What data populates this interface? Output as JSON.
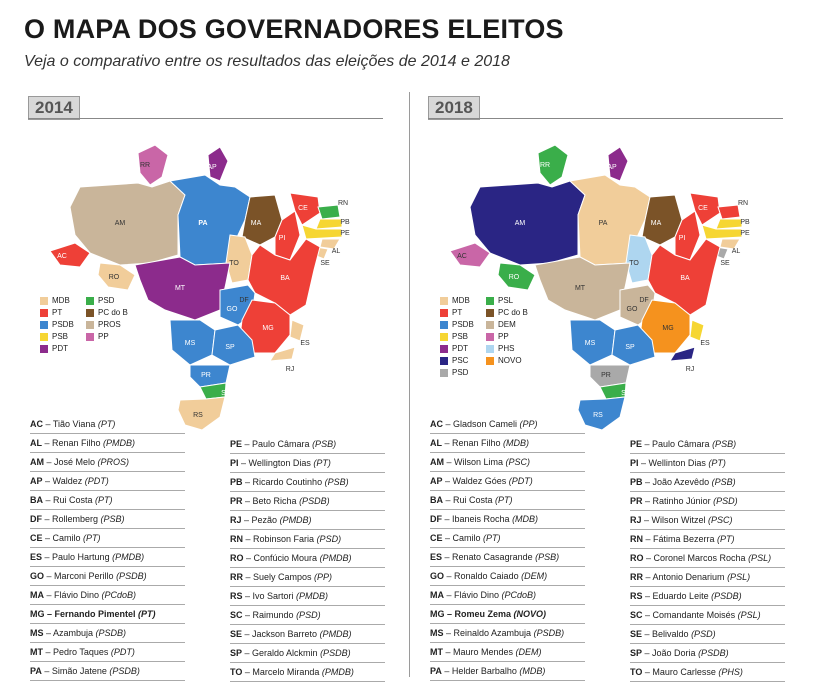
{
  "header": {
    "title": "O MAPA DOS GOVERNADORES ELEITOS",
    "subtitle": "Veja o comparativo entre os resultados das eleições de 2014 e 2018"
  },
  "colors": {
    "MDB": "#f1cd9a",
    "PT": "#ee4037",
    "PSDB": "#3d86cf",
    "PSB": "#f6d632",
    "PDT": "#8c2b8c",
    "PSD": "#3aae4a",
    "PCdoB": "#7b5328",
    "PROS": "#c9b59a",
    "PP": "#c966a7",
    "PSL": "#3aae4a",
    "DEM": "#c9b59a",
    "PHS": "#aed6f0",
    "PSC": "#2a2584",
    "NOVO": "#f5921e",
    "PSDgray": "#a9a9a9"
  },
  "panels": [
    {
      "year": "2014",
      "state_labels": [
        "RR",
        "AP",
        "AM",
        "PA",
        "MA",
        "CE",
        "RN",
        "PB",
        "PE",
        "AL",
        "SE",
        "PI",
        "AC",
        "RO",
        "TO",
        "BA",
        "MT",
        "DF",
        "GO",
        "MG",
        "ES",
        "RJ",
        "MS",
        "SP",
        "PR",
        "SC",
        "RS"
      ],
      "legend": [
        {
          "party": "MDB",
          "color": "#f1cd9a"
        },
        {
          "party": "PT",
          "color": "#ee4037"
        },
        {
          "party": "PSDB",
          "color": "#3d86cf"
        },
        {
          "party": "PSB",
          "color": "#f6d632"
        },
        {
          "party": "PDT",
          "color": "#8c2b8c"
        },
        {
          "party": "PSD",
          "color": "#3aae4a"
        },
        {
          "party": "PC do B",
          "color": "#7b5328"
        },
        {
          "party": "PROS",
          "color": "#c9b59a"
        },
        {
          "party": "PP",
          "color": "#c966a7"
        }
      ],
      "governors_left": [
        {
          "uf": "AC",
          "name": "Tião Viana",
          "party": "PT"
        },
        {
          "uf": "AL",
          "name": "Renan Filho",
          "party": "PMDB"
        },
        {
          "uf": "AM",
          "name": "José Melo",
          "party": "PROS"
        },
        {
          "uf": "AP",
          "name": "Waldez",
          "party": "PDT"
        },
        {
          "uf": "BA",
          "name": "Rui Costa",
          "party": "PT"
        },
        {
          "uf": "DF",
          "name": "Rollemberg",
          "party": "PSB"
        },
        {
          "uf": "CE",
          "name": "Camilo",
          "party": "PT"
        },
        {
          "uf": "ES",
          "name": "Paulo Hartung",
          "party": "PMDB"
        },
        {
          "uf": "GO",
          "name": "Marconi Perillo",
          "party": "PSDB"
        },
        {
          "uf": "MA",
          "name": "Flávio Dino",
          "party": "PCdoB"
        },
        {
          "uf": "MG",
          "name": "Fernando Pimentel",
          "party": "PT",
          "bold": true
        },
        {
          "uf": "MS",
          "name": "Azambuja",
          "party": "PSDB"
        },
        {
          "uf": "MT",
          "name": "Pedro Taques",
          "party": "PDT"
        },
        {
          "uf": "PA",
          "name": "Simão Jatene",
          "party": "PSDB"
        }
      ],
      "governors_right": [
        {
          "uf": "PE",
          "name": "Paulo Câmara",
          "party": "PSB"
        },
        {
          "uf": "PI",
          "name": "Wellington Dias",
          "party": "PT"
        },
        {
          "uf": "PB",
          "name": "Ricardo Coutinho",
          "party": "PSB"
        },
        {
          "uf": "PR",
          "name": "Beto Richa",
          "party": "PSDB"
        },
        {
          "uf": "RJ",
          "name": "Pezão",
          "party": "PMDB"
        },
        {
          "uf": "RN",
          "name": "Robinson Faria",
          "party": "PSD"
        },
        {
          "uf": "RO",
          "name": "Confúcio Moura",
          "party": "PMDB"
        },
        {
          "uf": "RR",
          "name": "Suely Campos",
          "party": "PP"
        },
        {
          "uf": "RS",
          "name": "Ivo Sartori",
          "party": "PMDB"
        },
        {
          "uf": "SC",
          "name": "Raimundo",
          "party": "PSD"
        },
        {
          "uf": "SE",
          "name": "Jackson Barreto",
          "party": "PMDB"
        },
        {
          "uf": "SP",
          "name": "Geraldo Alckmin",
          "party": "PSDB"
        },
        {
          "uf": "TO",
          "name": "Marcelo Miranda",
          "party": "PMDB"
        }
      ]
    },
    {
      "year": "2018",
      "state_labels": [
        "RR",
        "AP",
        "AM",
        "PA",
        "MA",
        "CE",
        "RN",
        "PB",
        "PE",
        "AL",
        "SE",
        "PI",
        "AC",
        "RO",
        "TO",
        "BA",
        "MT",
        "DF",
        "GO",
        "MG",
        "ES",
        "RJ",
        "MS",
        "SP",
        "PR",
        "SC",
        "RS"
      ],
      "legend": [
        {
          "party": "MDB",
          "color": "#f1cd9a"
        },
        {
          "party": "PT",
          "color": "#ee4037"
        },
        {
          "party": "PSDB",
          "color": "#3d86cf"
        },
        {
          "party": "PSB",
          "color": "#f6d632"
        },
        {
          "party": "PDT",
          "color": "#8c2b8c"
        },
        {
          "party": "PSC",
          "color": "#2a2584"
        },
        {
          "party": "PSD",
          "color": "#a9a9a9"
        },
        {
          "party": "PSL",
          "color": "#3aae4a"
        },
        {
          "party": "PC do B",
          "color": "#7b5328"
        },
        {
          "party": "DEM",
          "color": "#c9b59a"
        },
        {
          "party": "PP",
          "color": "#c966a7"
        },
        {
          "party": "PHS",
          "color": "#aed6f0"
        },
        {
          "party": "NOVO",
          "color": "#f5921e"
        }
      ],
      "governors_left": [
        {
          "uf": "AC",
          "name": "Gladson Cameli",
          "party": "PP"
        },
        {
          "uf": "AL",
          "name": "Renan Filho",
          "party": "MDB"
        },
        {
          "uf": "AM",
          "name": "Wilson Lima",
          "party": "PSC"
        },
        {
          "uf": "AP",
          "name": "Waldez Góes",
          "party": "PDT"
        },
        {
          "uf": "BA",
          "name": "Rui Costa",
          "party": "PT"
        },
        {
          "uf": "DF",
          "name": "Ibaneis Rocha",
          "party": "MDB"
        },
        {
          "uf": "CE",
          "name": "Camilo",
          "party": "PT"
        },
        {
          "uf": "ES",
          "name": "Renato Casagrande",
          "party": "PSB"
        },
        {
          "uf": "GO",
          "name": "Ronaldo Caiado",
          "party": "DEM"
        },
        {
          "uf": "MA",
          "name": "Flávio Dino",
          "party": "PCdoB"
        },
        {
          "uf": "MG",
          "name": "Romeu Zema",
          "party": "NOVO",
          "bold": true
        },
        {
          "uf": "MS",
          "name": "Reinaldo Azambuja",
          "party": "PSDB"
        },
        {
          "uf": "MT",
          "name": "Mauro Mendes",
          "party": "DEM"
        },
        {
          "uf": "PA",
          "name": "Helder Barbalho",
          "party": "MDB"
        }
      ],
      "governors_right": [
        {
          "uf": "PE",
          "name": "Paulo Câmara",
          "party": "PSB"
        },
        {
          "uf": "PI",
          "name": "Wellinton Dias",
          "party": "PT"
        },
        {
          "uf": "PB",
          "name": "João Azevêdo",
          "party": "PSB"
        },
        {
          "uf": "PR",
          "name": "Ratinho Júnior",
          "party": "PSD"
        },
        {
          "uf": "RJ",
          "name": "Wilson Witzel",
          "party": "PSC"
        },
        {
          "uf": "RN",
          "name": "Fátima Bezerra",
          "party": "PT"
        },
        {
          "uf": "RO",
          "name": "Coronel Marcos Rocha",
          "party": "PSL"
        },
        {
          "uf": "RR",
          "name": "Antonio Denarium",
          "party": "PSL"
        },
        {
          "uf": "RS",
          "name": "Eduardo Leite",
          "party": "PSDB"
        },
        {
          "uf": "SC",
          "name": "Comandante Moisés",
          "party": "PSL"
        },
        {
          "uf": "SE",
          "name": "Belivaldo",
          "party": "PSD"
        },
        {
          "uf": "SP",
          "name": "João Doria",
          "party": "PSDB"
        },
        {
          "uf": "TO",
          "name": "Mauro Carlesse",
          "party": "PHS"
        }
      ]
    }
  ],
  "map_colors": {
    "2014": {
      "RR": "#c966a7",
      "AP": "#8c2b8c",
      "AM": "#c9b59a",
      "PA": "#3d86cf",
      "MA": "#7b5328",
      "CE": "#ee4037",
      "RN": "#3aae4a",
      "PB": "#f6d632",
      "PE": "#f6d632",
      "AL": "#f1cd9a",
      "SE": "#f1cd9a",
      "PI": "#ee4037",
      "AC": "#ee4037",
      "RO": "#f1cd9a",
      "TO": "#f1cd9a",
      "BA": "#ee4037",
      "MT": "#8c2b8c",
      "DF": "#f6d632",
      "GO": "#3d86cf",
      "MG": "#ee4037",
      "ES": "#f1cd9a",
      "RJ": "#f1cd9a",
      "MS": "#3d86cf",
      "SP": "#3d86cf",
      "PR": "#3d86cf",
      "SC": "#3aae4a",
      "RS": "#f1cd9a"
    },
    "2018": {
      "RR": "#3aae4a",
      "AP": "#8c2b8c",
      "AM": "#2a2584",
      "PA": "#f1cd9a",
      "MA": "#7b5328",
      "CE": "#ee4037",
      "RN": "#ee4037",
      "PB": "#f6d632",
      "PE": "#f6d632",
      "AL": "#f1cd9a",
      "SE": "#a9a9a9",
      "PI": "#ee4037",
      "AC": "#c966a7",
      "RO": "#3aae4a",
      "TO": "#aed6f0",
      "BA": "#ee4037",
      "MT": "#c9b59a",
      "DF": "#f1cd9a",
      "GO": "#c9b59a",
      "MG": "#f5921e",
      "ES": "#f6d632",
      "RJ": "#2a2584",
      "MS": "#3d86cf",
      "SP": "#3d86cf",
      "PR": "#a9a9a9",
      "SC": "#3aae4a",
      "RS": "#3d86cf"
    }
  }
}
